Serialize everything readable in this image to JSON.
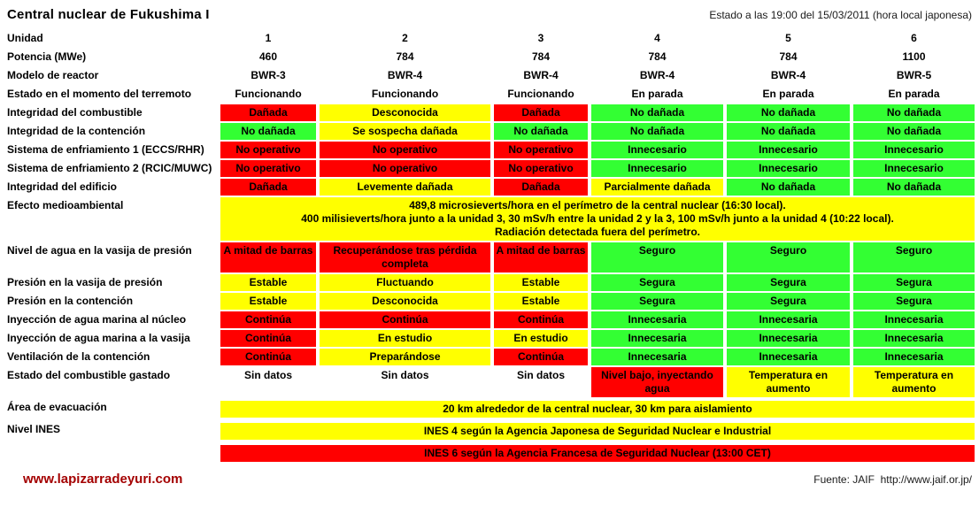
{
  "header": {
    "title": "Central nuclear de Fukushima I",
    "status": "Estado a las 19:00 del 15/03/2011 (hora local japonesa)"
  },
  "colors": {
    "red": "#ff0000",
    "yellow": "#ffff00",
    "green": "#33ff33",
    "link_red": "#a40000"
  },
  "chart_data": {
    "type": "table",
    "title": "Central nuclear de Fukushima I",
    "timestamp": "Estado a las 19:00 del 15/03/2011 (hora local japonesa)",
    "columns": [
      "Unidad",
      "1",
      "2",
      "3",
      "4",
      "5",
      "6"
    ],
    "color_legend_note": "red/yellow/green cell fills indicate severity",
    "rows": [
      {
        "type": "units",
        "label": "Unidad",
        "values": [
          "1",
          "2",
          "3",
          "4",
          "5",
          "6"
        ]
      },
      {
        "type": "units",
        "label": "Potencia (MWe)",
        "values": [
          "460",
          "784",
          "784",
          "784",
          "784",
          "1100"
        ]
      },
      {
        "type": "units",
        "label": "Modelo de reactor",
        "values": [
          "BWR-3",
          "BWR-4",
          "BWR-4",
          "BWR-4",
          "BWR-4",
          "BWR-5"
        ]
      },
      {
        "type": "units",
        "label": "Estado en el momento del terremoto",
        "values": [
          "Funcionando",
          "Funcionando",
          "Funcionando",
          "En parada",
          "En parada",
          "En parada"
        ]
      },
      {
        "type": "status",
        "label": "Integridad del combustible",
        "cells": [
          {
            "text": "Dañada",
            "color": "red"
          },
          {
            "text": "Desconocida",
            "color": "yellow"
          },
          {
            "text": "Dañada",
            "color": "red"
          },
          {
            "text": "No dañada",
            "color": "green"
          },
          {
            "text": "No dañada",
            "color": "green"
          },
          {
            "text": "No dañada",
            "color": "green"
          }
        ]
      },
      {
        "type": "status",
        "label": "Integridad de la contención",
        "cells": [
          {
            "text": "No dañada",
            "color": "green"
          },
          {
            "text": "Se sospecha dañada",
            "color": "yellow"
          },
          {
            "text": "No dañada",
            "color": "green"
          },
          {
            "text": "No dañada",
            "color": "green"
          },
          {
            "text": "No dañada",
            "color": "green"
          },
          {
            "text": "No dañada",
            "color": "green"
          }
        ]
      },
      {
        "type": "status",
        "label": "Sistema de enfriamiento 1 (ECCS/RHR)",
        "cells": [
          {
            "text": "No operativo",
            "color": "red"
          },
          {
            "text": "No operativo",
            "color": "red"
          },
          {
            "text": "No operativo",
            "color": "red"
          },
          {
            "text": "Innecesario",
            "color": "green"
          },
          {
            "text": "Innecesario",
            "color": "green"
          },
          {
            "text": "Innecesario",
            "color": "green"
          }
        ]
      },
      {
        "type": "status",
        "label": "Sistema de enfriamiento 2 (RCIC/MUWC)",
        "cells": [
          {
            "text": "No operativo",
            "color": "red"
          },
          {
            "text": "No operativo",
            "color": "red"
          },
          {
            "text": "No operativo",
            "color": "red"
          },
          {
            "text": "Innecesario",
            "color": "green"
          },
          {
            "text": "Innecesario",
            "color": "green"
          },
          {
            "text": "Innecesario",
            "color": "green"
          }
        ]
      },
      {
        "type": "status",
        "label": "Integridad del edificio",
        "cells": [
          {
            "text": "Dañada",
            "color": "red"
          },
          {
            "text": "Levemente dañada",
            "color": "yellow"
          },
          {
            "text": "Dañada",
            "color": "red"
          },
          {
            "text": "Parcialmente dañada",
            "color": "yellow"
          },
          {
            "text": "No dañada",
            "color": "green"
          },
          {
            "text": "No dañada",
            "color": "green"
          }
        ]
      },
      {
        "type": "span",
        "label": "Efecto medioambiental",
        "color": "yellow",
        "lines": [
          "489,8 microsieverts/hora en el perímetro de la central nuclear (16:30 local).",
          "400 milisieverts/hora junto a la unidad 3, 30 mSv/h entre la unidad 2 y la 3, 100 mSv/h junto a la unidad 4 (10:22 local).",
          "Radiación detectada fuera del perímetro."
        ]
      },
      {
        "type": "status",
        "label": "Nivel de agua en la vasija de presión",
        "cells": [
          {
            "text": "A mitad de barras",
            "color": "red"
          },
          {
            "text": "Recuperándose tras pérdida completa",
            "color": "red"
          },
          {
            "text": "A mitad de barras",
            "color": "red"
          },
          {
            "text": "Seguro",
            "color": "green"
          },
          {
            "text": "Seguro",
            "color": "green"
          },
          {
            "text": "Seguro",
            "color": "green"
          }
        ]
      },
      {
        "type": "status",
        "label": "Presión en la vasija de presión",
        "cells": [
          {
            "text": "Estable",
            "color": "yellow"
          },
          {
            "text": "Fluctuando",
            "color": "yellow"
          },
          {
            "text": "Estable",
            "color": "yellow"
          },
          {
            "text": "Segura",
            "color": "green"
          },
          {
            "text": "Segura",
            "color": "green"
          },
          {
            "text": "Segura",
            "color": "green"
          }
        ]
      },
      {
        "type": "status",
        "label": "Presión en la contención",
        "cells": [
          {
            "text": "Estable",
            "color": "yellow"
          },
          {
            "text": "Desconocida",
            "color": "yellow"
          },
          {
            "text": "Estable",
            "color": "yellow"
          },
          {
            "text": "Segura",
            "color": "green"
          },
          {
            "text": "Segura",
            "color": "green"
          },
          {
            "text": "Segura",
            "color": "green"
          }
        ]
      },
      {
        "type": "status",
        "label": "Inyección de agua marina al núcleo",
        "cells": [
          {
            "text": "Continúa",
            "color": "red"
          },
          {
            "text": "Continúa",
            "color": "red"
          },
          {
            "text": "Continúa",
            "color": "red"
          },
          {
            "text": "Innecesaria",
            "color": "green"
          },
          {
            "text": "Innecesaria",
            "color": "green"
          },
          {
            "text": "Innecesaria",
            "color": "green"
          }
        ]
      },
      {
        "type": "status",
        "label": "Inyección de agua marina a la vasija",
        "cells": [
          {
            "text": "Continúa",
            "color": "red"
          },
          {
            "text": "En estudio",
            "color": "yellow"
          },
          {
            "text": "En estudio",
            "color": "yellow"
          },
          {
            "text": "Innecesaria",
            "color": "green"
          },
          {
            "text": "Innecesaria",
            "color": "green"
          },
          {
            "text": "Innecesaria",
            "color": "green"
          }
        ]
      },
      {
        "type": "status",
        "label": "Ventilación de la contención",
        "cells": [
          {
            "text": "Continúa",
            "color": "red"
          },
          {
            "text": "Preparándose",
            "color": "yellow"
          },
          {
            "text": "Continúa",
            "color": "red"
          },
          {
            "text": "Innecesaria",
            "color": "green"
          },
          {
            "text": "Innecesaria",
            "color": "green"
          },
          {
            "text": "Innecesaria",
            "color": "green"
          }
        ]
      },
      {
        "type": "status",
        "label": "Estado del combustible gastado",
        "cells": [
          {
            "text": "Sin datos",
            "color": "none"
          },
          {
            "text": "Sin datos",
            "color": "none"
          },
          {
            "text": "Sin datos",
            "color": "none"
          },
          {
            "text": "Nivel bajo, inyectando agua",
            "color": "red"
          },
          {
            "text": "Temperatura en aumento",
            "color": "yellow"
          },
          {
            "text": "Temperatura en aumento",
            "color": "yellow"
          }
        ]
      },
      {
        "type": "span",
        "label": "Área de evacuación",
        "color": "yellow",
        "gapped": true,
        "lines": [
          "20 km alrededor de la central nuclear, 30 km para aislamiento"
        ]
      },
      {
        "type": "span",
        "label": "Nivel INES",
        "color": "yellow",
        "gapped": true,
        "lines": [
          "INES 4 según la Agencia Japonesa de Seguridad Nuclear e Industrial"
        ]
      },
      {
        "type": "span",
        "label": "",
        "color": "red",
        "gapped": true,
        "lines": [
          "INES 6 según la Agencia Francesa de Seguridad Nuclear (13:00 CET)"
        ]
      }
    ]
  },
  "footer": {
    "site": "www.lapizarradeyuri.com",
    "source_label": "Fuente: JAIF",
    "source_url": "http://www.jaif.or.jp/"
  }
}
